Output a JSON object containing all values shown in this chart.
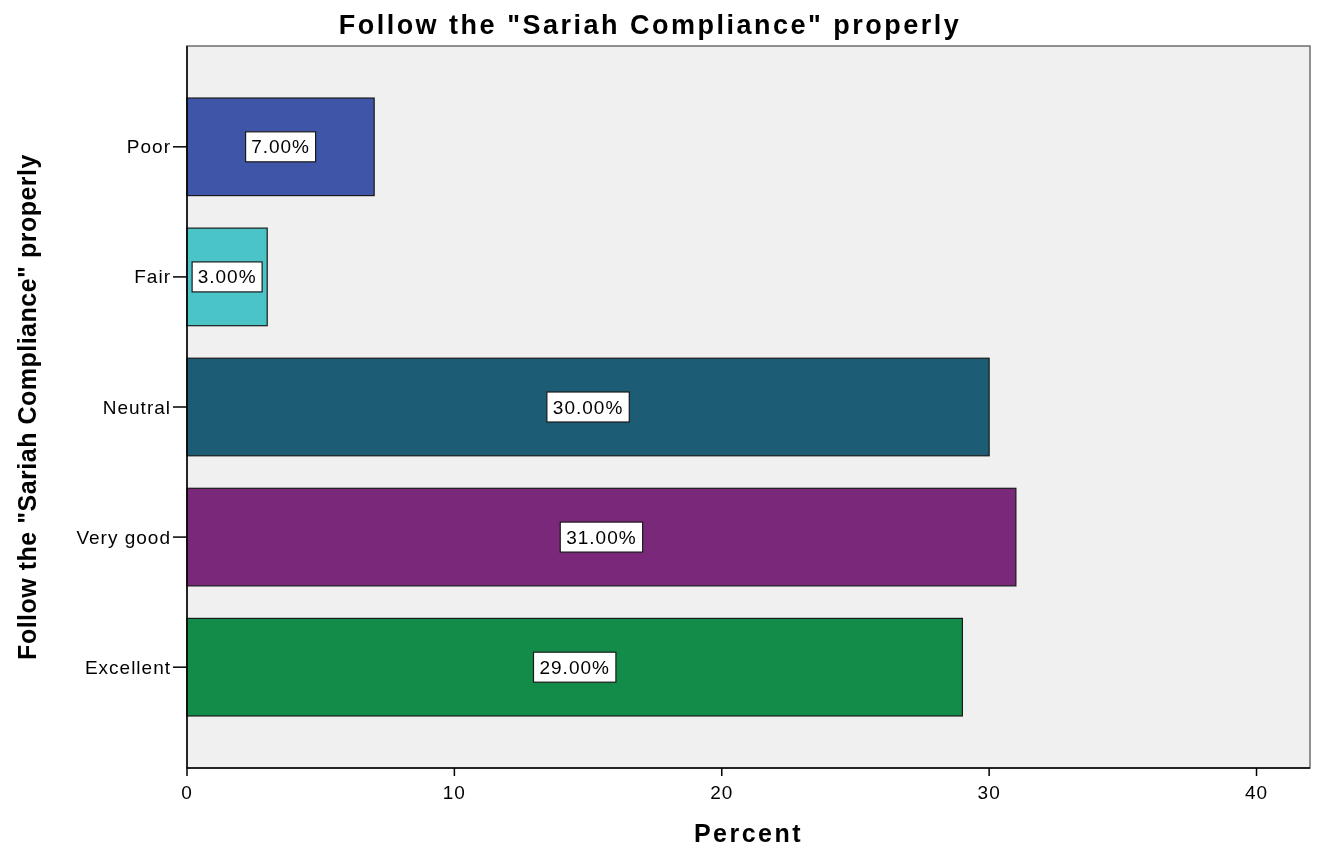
{
  "chart_data": {
    "type": "bar",
    "orientation": "horizontal",
    "title": "Follow the \"Sariah Compliance\" properly",
    "xlabel": "Percent",
    "ylabel": "Follow the \"Sariah Compliance\" properly",
    "categories": [
      "Poor",
      "Fair",
      "Neutral",
      "Very good",
      "Excellent"
    ],
    "values": [
      7,
      3,
      30,
      31,
      29
    ],
    "colors": [
      "#3f55a8",
      "#4bc4c8",
      "#1c5d75",
      "#7a2879",
      "#128c48"
    ],
    "value_labels": [
      "7.00%",
      "3.00%",
      "30.00%",
      "31.00%",
      "29.00%"
    ],
    "xlim": [
      0,
      42
    ],
    "xticks": [
      0,
      10,
      20,
      30,
      40
    ]
  }
}
